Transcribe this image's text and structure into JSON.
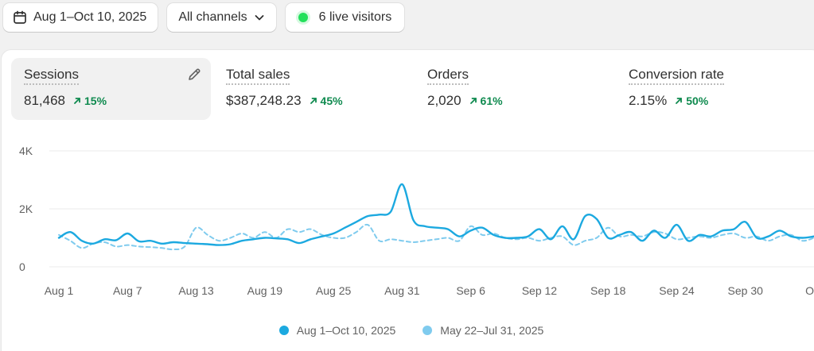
{
  "header": {
    "date_range": "Aug 1–Oct 10, 2025",
    "channels": "All channels",
    "live_visitors": "6 live visitors"
  },
  "metrics": [
    {
      "label": "Sessions",
      "value": "81,468",
      "change": "15%"
    },
    {
      "label": "Total sales",
      "value": "$387,248.23",
      "change": "45%"
    },
    {
      "label": "Orders",
      "value": "2,020",
      "change": "61%"
    },
    {
      "label": "Conversion rate",
      "value": "2.15%",
      "change": "50%"
    }
  ],
  "colors": {
    "current": "#1ca9e0",
    "comparison": "#7fcbee",
    "positive": "#0f8a4f",
    "live": "#22e05b"
  },
  "chart_data": {
    "type": "line",
    "ylim": [
      0,
      4000
    ],
    "yticks": [
      "4K",
      "2K",
      "0"
    ],
    "ytick_values": [
      4000,
      2000,
      0
    ],
    "xtick_labels": [
      "Aug 1",
      "Aug 7",
      "Aug 13",
      "Aug 19",
      "Aug 25",
      "Aug 31",
      "Sep 6",
      "Sep 12",
      "Sep 18",
      "Sep 24",
      "Sep 30",
      "Oct"
    ],
    "xtick_indices": [
      0,
      6,
      12,
      18,
      24,
      30,
      36,
      42,
      48,
      54,
      60,
      66
    ],
    "legend": [
      "Aug 1–Oct 10, 2025",
      "May 22–Jul 31, 2025"
    ],
    "series": [
      {
        "name": "Aug 1–Oct 10, 2025",
        "style": "solid",
        "values": [
          1000,
          1200,
          900,
          800,
          950,
          920,
          1150,
          880,
          900,
          800,
          850,
          820,
          800,
          780,
          750,
          780,
          900,
          950,
          1000,
          980,
          950,
          820,
          950,
          1050,
          1150,
          1350,
          1550,
          1750,
          1800,
          1900,
          2850,
          1600,
          1400,
          1350,
          1300,
          1050,
          1250,
          1350,
          1100,
          1000,
          1000,
          1050,
          1300,
          950,
          1400,
          950,
          1750,
          1650,
          1000,
          1100,
          1200,
          900,
          1250,
          1000,
          1450,
          900,
          1100,
          1050,
          1250,
          1300,
          1550,
          1000,
          1050,
          1250,
          1050,
          1000,
          1050
        ]
      },
      {
        "name": "May 22–Jul 31, 2025",
        "style": "dashed",
        "values": [
          1100,
          900,
          650,
          800,
          850,
          700,
          750,
          700,
          680,
          650,
          600,
          700,
          1350,
          1100,
          900,
          1000,
          1150,
          1000,
          1200,
          1000,
          1300,
          1200,
          1300,
          1100,
          1000,
          1000,
          1200,
          1450,
          900,
          950,
          900,
          850,
          900,
          950,
          1000,
          900,
          1400,
          1100,
          1150,
          1000,
          950,
          1000,
          900,
          1000,
          1050,
          750,
          900,
          1000,
          1350,
          1050,
          1100,
          1050,
          1200,
          1150,
          950,
          1000,
          1050,
          1000,
          1100,
          1150,
          1000,
          1050,
          900,
          1050,
          1100,
          900,
          1000
        ]
      }
    ]
  }
}
